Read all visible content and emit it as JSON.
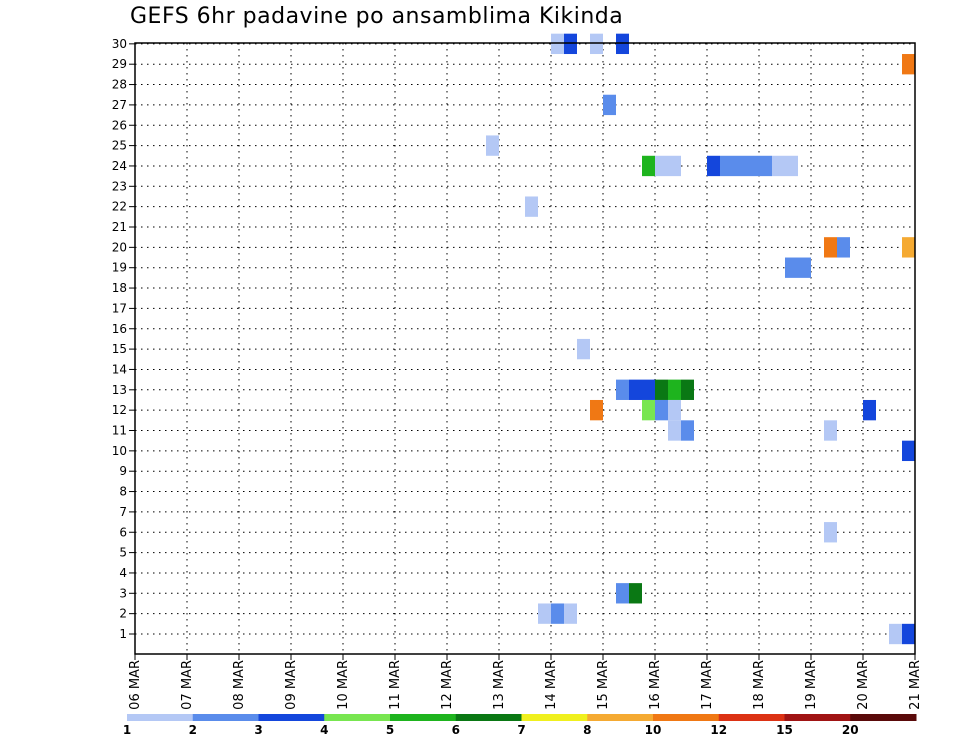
{
  "chart_data": {
    "type": "heatmap",
    "title": "GEFS 6hr padavine po ansamblima Kikinda",
    "xlabel": "",
    "ylabel": "",
    "x_ticks": [
      "06 MAR",
      "07 MAR",
      "08 MAR",
      "09 MAR",
      "10 MAR",
      "11 MAR",
      "12 MAR",
      "13 MAR",
      "14 MAR",
      "15 MAR",
      "16 MAR",
      "17 MAR",
      "18 MAR",
      "19 MAR",
      "20 MAR",
      "21 MAR"
    ],
    "y_ticks": [
      "1",
      "2",
      "3",
      "4",
      "5",
      "6",
      "7",
      "8",
      "9",
      "10",
      "11",
      "12",
      "13",
      "14",
      "15",
      "16",
      "17",
      "18",
      "19",
      "20",
      "21",
      "22",
      "23",
      "24",
      "25",
      "26",
      "27",
      "28",
      "29",
      "30"
    ],
    "time_unit": "6h steps from 06 MAR 00Z",
    "grid": true,
    "legend": {
      "placement": "bottom",
      "levels": [
        "1",
        "2",
        "3",
        "4",
        "5",
        "6",
        "7",
        "8",
        "10",
        "12",
        "15",
        "20"
      ],
      "colors": [
        "#b4c8f5",
        "#5a8ceb",
        "#1446dc",
        "#78e650",
        "#1eb41e",
        "#0a7814",
        "#f0f01e",
        "#f5aa32",
        "#f07814",
        "#dc3214",
        "#a01414",
        "#5a0a0a"
      ]
    },
    "cells": [
      {
        "member": 30,
        "step": 33,
        "level": 1
      },
      {
        "member": 30,
        "step": 34,
        "level": 3
      },
      {
        "member": 30,
        "step": 36,
        "level": 1
      },
      {
        "member": 30,
        "step": 38,
        "level": 3
      },
      {
        "member": 29,
        "step": 60,
        "level": 9
      },
      {
        "member": 27,
        "step": 37,
        "level": 2
      },
      {
        "member": 25,
        "step": 28,
        "level": 1
      },
      {
        "member": 24,
        "step": 40,
        "level": 5
      },
      {
        "member": 24,
        "step": 41,
        "level": 1
      },
      {
        "member": 24,
        "step": 42,
        "level": 1
      },
      {
        "member": 24,
        "step": 45,
        "level": 3
      },
      {
        "member": 24,
        "step": 46,
        "level": 2
      },
      {
        "member": 24,
        "step": 47,
        "level": 2
      },
      {
        "member": 24,
        "step": 48,
        "level": 2
      },
      {
        "member": 24,
        "step": 49,
        "level": 2
      },
      {
        "member": 24,
        "step": 50,
        "level": 1
      },
      {
        "member": 24,
        "step": 51,
        "level": 1
      },
      {
        "member": 22,
        "step": 31,
        "level": 1
      },
      {
        "member": 20,
        "step": 54,
        "level": 9
      },
      {
        "member": 20,
        "step": 55,
        "level": 2
      },
      {
        "member": 20,
        "step": 60,
        "level": 8
      },
      {
        "member": 19,
        "step": 51,
        "level": 2
      },
      {
        "member": 19,
        "step": 52,
        "level": 2
      },
      {
        "member": 15,
        "step": 35,
        "level": 1
      },
      {
        "member": 13,
        "step": 38,
        "level": 2
      },
      {
        "member": 13,
        "step": 39,
        "level": 3
      },
      {
        "member": 13,
        "step": 40,
        "level": 3
      },
      {
        "member": 13,
        "step": 41,
        "level": 6
      },
      {
        "member": 13,
        "step": 42,
        "level": 5
      },
      {
        "member": 13,
        "step": 43,
        "level": 6
      },
      {
        "member": 12,
        "step": 36,
        "level": 9
      },
      {
        "member": 12,
        "step": 40,
        "level": 4
      },
      {
        "member": 12,
        "step": 41,
        "level": 2
      },
      {
        "member": 12,
        "step": 42,
        "level": 1
      },
      {
        "member": 12,
        "step": 57,
        "level": 3
      },
      {
        "member": 11,
        "step": 42,
        "level": 1
      },
      {
        "member": 11,
        "step": 43,
        "level": 2
      },
      {
        "member": 11,
        "step": 54,
        "level": 1
      },
      {
        "member": 10,
        "step": 60,
        "level": 3
      },
      {
        "member": 6,
        "step": 54,
        "level": 1
      },
      {
        "member": 3,
        "step": 38,
        "level": 2
      },
      {
        "member": 3,
        "step": 39,
        "level": 6
      },
      {
        "member": 2,
        "step": 32,
        "level": 1
      },
      {
        "member": 2,
        "step": 33,
        "level": 2
      },
      {
        "member": 2,
        "step": 34,
        "level": 1
      },
      {
        "member": 1,
        "step": 59,
        "level": 1
      },
      {
        "member": 1,
        "step": 60,
        "level": 3
      }
    ]
  }
}
